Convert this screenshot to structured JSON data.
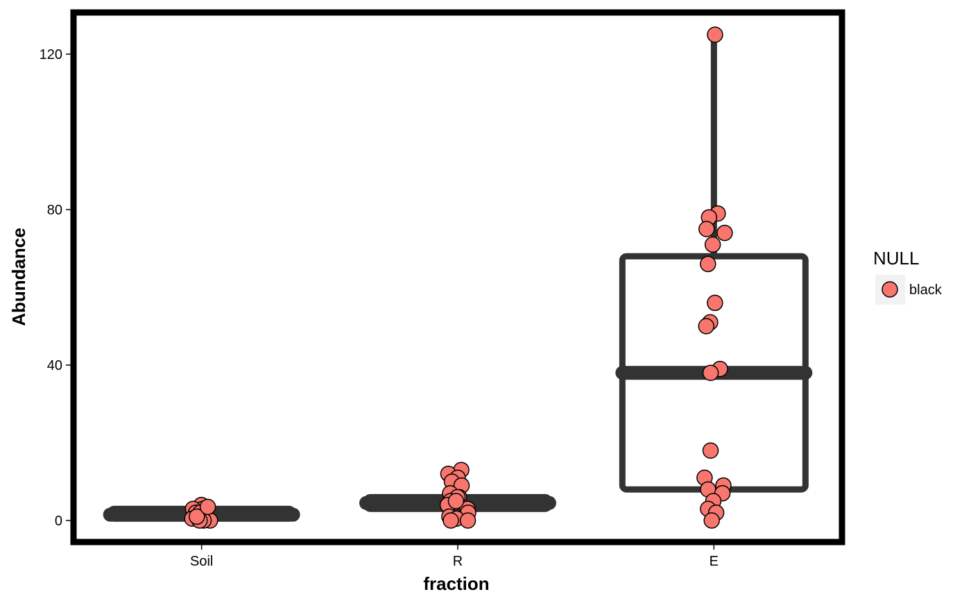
{
  "chart_data": {
    "type": "box",
    "xlabel": "fraction",
    "ylabel": "Abundance",
    "categories": [
      "Soil",
      "R",
      "E"
    ],
    "ylim": [
      -5.5,
      130
    ],
    "yticks": [
      0,
      40,
      80,
      120
    ],
    "grid": false,
    "boxes": [
      {
        "category": "Soil",
        "min": 0,
        "q1": 0.5,
        "median": 1.5,
        "q3": 3,
        "max": 4
      },
      {
        "category": "R",
        "min": 0,
        "q1": 3,
        "median": 4.5,
        "q3": 6,
        "max": 13
      },
      {
        "category": "E",
        "min": 0,
        "q1": 8,
        "median": 38,
        "q3": 68,
        "max": 125
      }
    ],
    "points": [
      {
        "category": "Soil",
        "values": [
          4,
          3,
          3,
          2,
          2,
          1,
          0.5,
          0,
          0,
          0,
          1,
          3.5
        ]
      },
      {
        "category": "R",
        "values": [
          13,
          12,
          11,
          10,
          9,
          7,
          6,
          6,
          5,
          4,
          3,
          2,
          1,
          0.5,
          0,
          0,
          5
        ]
      },
      {
        "category": "E",
        "values": [
          125,
          79,
          78,
          75,
          74,
          71,
          66,
          56,
          51,
          50,
          39,
          38,
          18,
          11,
          9,
          8,
          7,
          5,
          3,
          2,
          0
        ]
      }
    ],
    "point_fill": "#F8766D",
    "point_stroke": "#000000",
    "box_color": "#333333",
    "legend": {
      "title": "NULL",
      "entries": [
        "black"
      ],
      "position": "right"
    }
  }
}
